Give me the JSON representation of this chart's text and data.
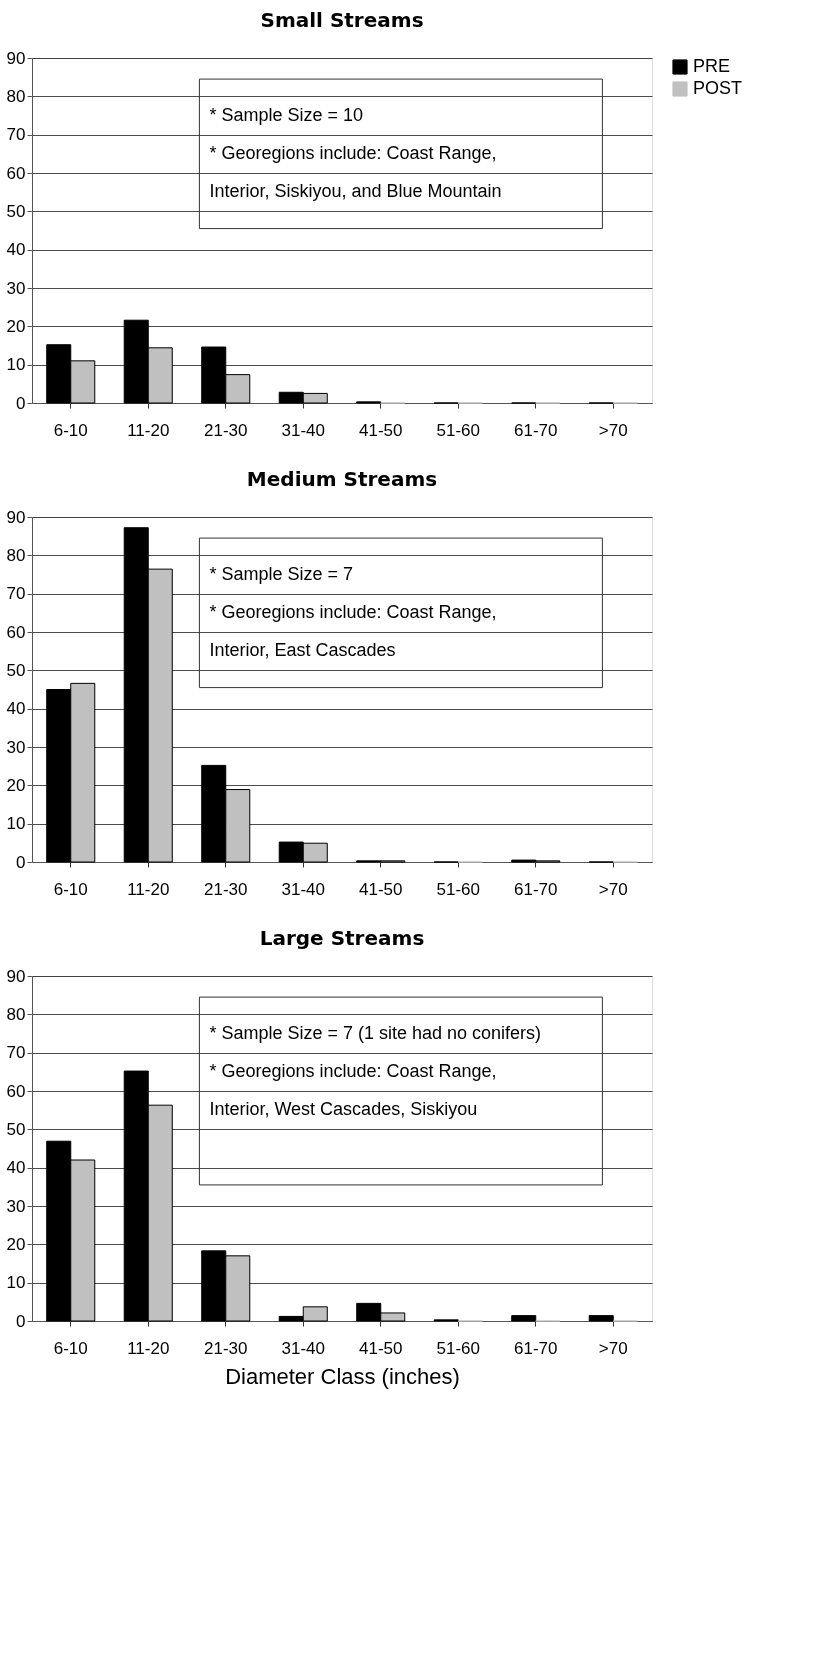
{
  "chart_data": [
    {
      "type": "bar",
      "title": "Small Streams",
      "categories": [
        "6-10",
        "11-20",
        "21-30",
        "31-40",
        "41-50",
        "51-60",
        "61-70",
        ">70"
      ],
      "series": [
        {
          "name": "PRE",
          "color": "#000000",
          "values": [
            15.2,
            21.6,
            14.6,
            2.8,
            0.3,
            0,
            0,
            0
          ]
        },
        {
          "name": "POST",
          "color": "#c0c0c0",
          "values": [
            11,
            14.4,
            7.4,
            2.5,
            0,
            0,
            0,
            0
          ]
        }
      ],
      "ylim": [
        0,
        90
      ],
      "yticks": [
        0,
        10,
        20,
        30,
        40,
        50,
        60,
        70,
        80,
        90
      ],
      "grid": "y",
      "legend": "right",
      "annotations": [
        "* Sample Size = 10",
        "* Georegions include: Coast Range,",
        "   Interior, Siskiyou, and Blue Mountain"
      ]
    },
    {
      "type": "bar",
      "title": "Medium Streams",
      "categories": [
        "6-10",
        "11-20",
        "21-30",
        "31-40",
        "41-50",
        "51-60",
        "61-70",
        ">70"
      ],
      "series": [
        {
          "name": "PRE",
          "color": "#000000",
          "values": [
            45,
            87.2,
            25.2,
            5.2,
            0.3,
            0,
            0.5,
            0
          ]
        },
        {
          "name": "POST",
          "color": "#c0c0c0",
          "values": [
            46.6,
            76.4,
            18.9,
            4.9,
            0.3,
            0,
            0.3,
            0
          ]
        }
      ],
      "ylim": [
        0,
        90
      ],
      "yticks": [
        0,
        10,
        20,
        30,
        40,
        50,
        60,
        70,
        80,
        90
      ],
      "grid": "y",
      "legend": "right",
      "annotations": [
        "* Sample Size = 7",
        "* Georegions include: Coast Range,",
        "   Interior, East Cascades"
      ]
    },
    {
      "type": "bar",
      "title": "Large Streams",
      "xlabel": "Diameter Class (inches)",
      "categories": [
        "6-10",
        "11-20",
        "21-30",
        "31-40",
        "41-50",
        "51-60",
        "61-70",
        ">70"
      ],
      "series": [
        {
          "name": "PRE",
          "color": "#000000",
          "values": [
            46.9,
            65.2,
            18.3,
            1.2,
            4.6,
            0.3,
            1.4,
            1.4
          ]
        },
        {
          "name": "POST",
          "color": "#c0c0c0",
          "values": [
            42,
            56.3,
            17,
            3.7,
            2.1,
            0,
            0,
            0
          ]
        }
      ],
      "ylim": [
        0,
        90
      ],
      "yticks": [
        0,
        10,
        20,
        30,
        40,
        50,
        60,
        70,
        80,
        90
      ],
      "grid": "y",
      "legend": "right",
      "annotations": [
        "* Sample Size = 7 (1 site had no conifers)",
        "* Georegions include: Coast Range,",
        "   Interior, West Cascades, Siskiyou"
      ]
    }
  ]
}
